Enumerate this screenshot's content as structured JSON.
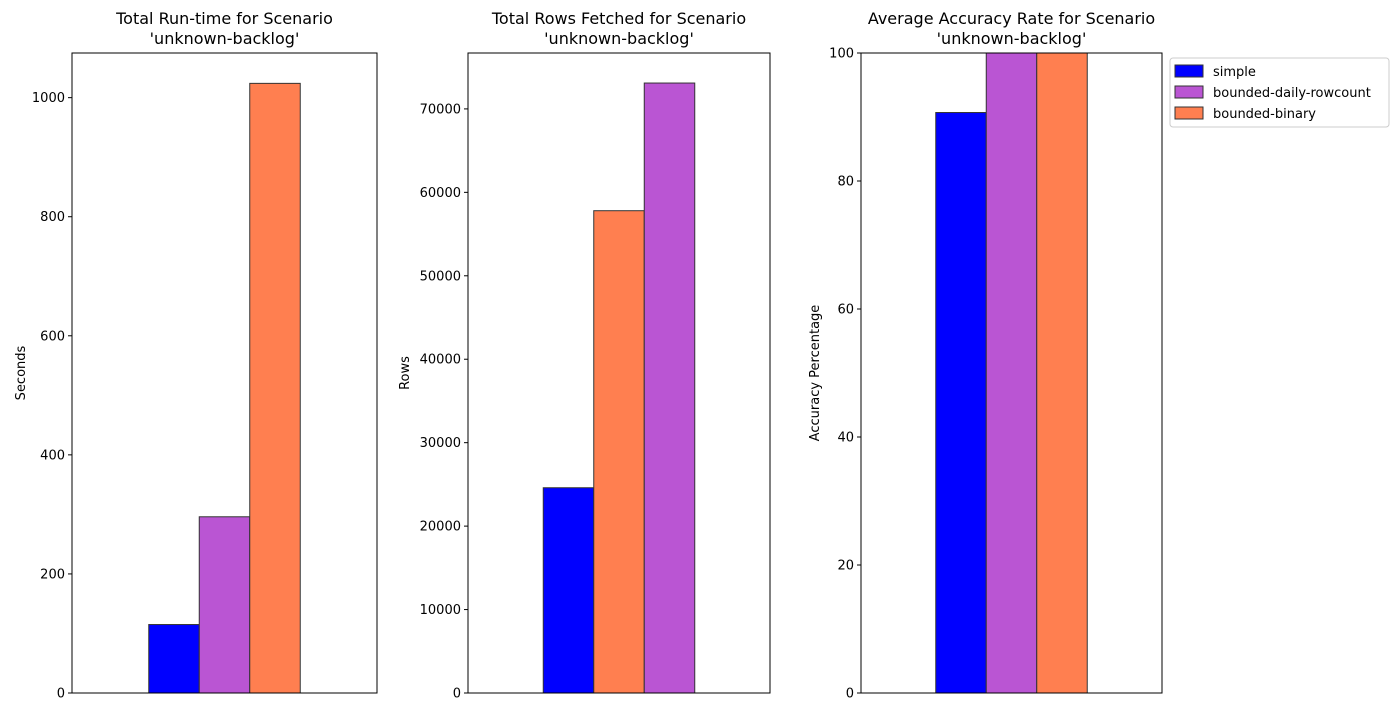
{
  "chart_data": [
    {
      "type": "bar",
      "title": [
        "Total Run-time for Scenario",
        "'unknown-backlog'"
      ],
      "xlabel": "",
      "ylabel": "Seconds",
      "ylim": [
        0,
        1075
      ],
      "yticks": [
        0,
        200,
        400,
        600,
        800,
        1000
      ],
      "series": [
        {
          "name": "simple",
          "value": 115,
          "color": "#0000ff"
        },
        {
          "name": "bounded-daily-rowcount",
          "value": 296,
          "color": "#ba55d3"
        },
        {
          "name": "bounded-binary",
          "value": 1024,
          "color": "#ff7f50"
        }
      ],
      "grid": false
    },
    {
      "type": "bar",
      "title": [
        "Total Rows Fetched for Scenario",
        "'unknown-backlog'"
      ],
      "xlabel": "",
      "ylabel": "Rows",
      "ylim": [
        0,
        76700
      ],
      "yticks": [
        0,
        10000,
        20000,
        30000,
        40000,
        50000,
        60000,
        70000
      ],
      "series": [
        {
          "name": "simple",
          "value": 24600,
          "color": "#0000ff"
        },
        {
          "name": "bounded-binary",
          "value": 57800,
          "color": "#ff7f50"
        },
        {
          "name": "bounded-daily-rowcount",
          "value": 73100,
          "color": "#ba55d3"
        }
      ],
      "grid": false
    },
    {
      "type": "bar",
      "title": [
        "Average Accuracy Rate for Scenario",
        "'unknown-backlog'"
      ],
      "xlabel": "",
      "ylabel": "Accuracy Percentage",
      "ylim": [
        0,
        100
      ],
      "yticks": [
        0,
        20,
        40,
        60,
        80,
        100
      ],
      "series": [
        {
          "name": "simple",
          "value": 90.7,
          "color": "#0000ff"
        },
        {
          "name": "bounded-daily-rowcount",
          "value": 100,
          "color": "#ba55d3"
        },
        {
          "name": "bounded-binary",
          "value": 100,
          "color": "#ff7f50"
        }
      ],
      "grid": false
    }
  ],
  "legend": {
    "placement": "outside upper right of third chart",
    "entries": [
      {
        "label": "simple",
        "color": "#0000ff"
      },
      {
        "label": "bounded-daily-rowcount",
        "color": "#ba55d3"
      },
      {
        "label": "bounded-binary",
        "color": "#ff7f50"
      }
    ]
  }
}
